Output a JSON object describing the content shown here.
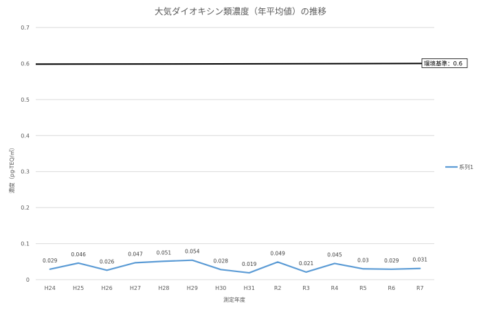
{
  "chart_data": {
    "type": "line",
    "title": "大気ダイオキシン類濃度（年平均値）の推移",
    "xlabel": "測定年度",
    "ylabel": "濃度（pg-TEQ/㎥）",
    "categories": [
      "H24",
      "H25",
      "H26",
      "H27",
      "H28",
      "H29",
      "H30",
      "H31",
      "R2",
      "R3",
      "R4",
      "R5",
      "R6",
      "R7"
    ],
    "series": [
      {
        "name": "系列1",
        "color": "#5b9bd5",
        "values": [
          0.029,
          0.046,
          0.026,
          0.047,
          0.051,
          0.054,
          0.028,
          0.019,
          0.049,
          0.021,
          0.045,
          0.03,
          0.029,
          0.031
        ],
        "value_labels": [
          "0.029",
          "0.046",
          "0.026",
          "0.047",
          "0.051",
          "0.054",
          "0.028",
          "0.019",
          "0.049",
          "0.021",
          "0.045",
          "0.03",
          "0.029",
          "0.031"
        ]
      }
    ],
    "ylim": [
      0,
      0.7
    ],
    "yticks": [
      0,
      0.1,
      0.2,
      0.3,
      0.4,
      0.5,
      0.6,
      0.7
    ],
    "ytick_labels": [
      "0",
      "0.1",
      "0.2",
      "0.3",
      "0.4",
      "0.5",
      "0.6",
      "0.7"
    ],
    "grid": true,
    "legend_position": "right",
    "reference_line": {
      "value": 0.6,
      "label": "環境基準：0.6",
      "color": "#000000"
    },
    "gridline_color": "#d9d9d9"
  }
}
